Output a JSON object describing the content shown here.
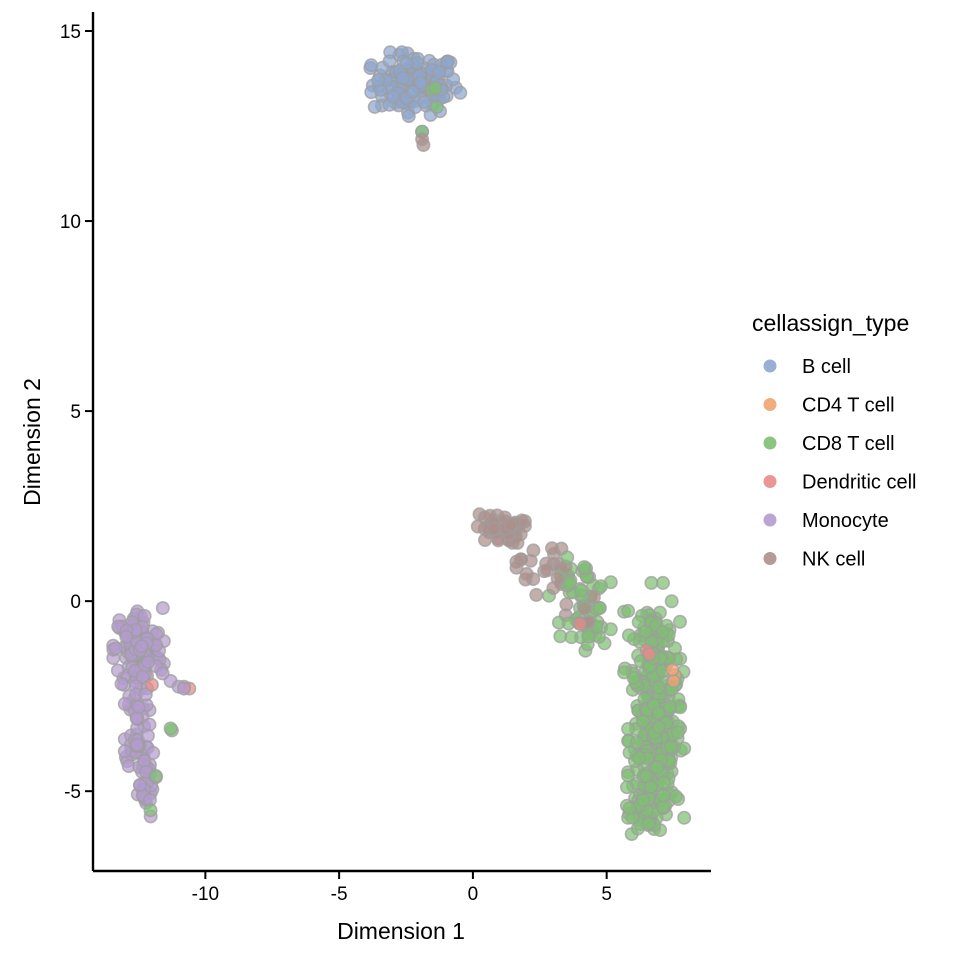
{
  "chart_data": {
    "type": "scatter",
    "title": "",
    "xlabel": "Dimension 1",
    "ylabel": "Dimension 2",
    "xlim": [
      -14.2,
      8.9
    ],
    "ylim": [
      -7.1,
      15.5
    ],
    "xticks": [
      -10,
      -5,
      0,
      5
    ],
    "yticks": [
      -5,
      0,
      5,
      10,
      15
    ],
    "grid": false,
    "legend": {
      "title": "cellassign_type",
      "placement": "right"
    },
    "series": [
      {
        "name": "B cell",
        "color": "#8ea6cf",
        "clusters": [
          {
            "cx": -2.15,
            "cy": 13.6,
            "sx": 0.8,
            "sy": 0.4,
            "n": 130
          }
        ],
        "points": [
          [
            -1.9,
            12.35
          ]
        ]
      },
      {
        "name": "CD4 T cell",
        "color": "#f0a470",
        "clusters": [],
        "points": [
          [
            7.55,
            -1.95
          ],
          [
            7.5,
            -2.1
          ],
          [
            7.45,
            -1.8
          ]
        ]
      },
      {
        "name": "CD8 T cell",
        "color": "#7fbf73",
        "clusters": [
          {
            "cx": 6.7,
            "cy": -1.2,
            "sx": 0.5,
            "sy": 0.8,
            "n": 90
          },
          {
            "cx": 6.85,
            "cy": -3.6,
            "sx": 0.5,
            "sy": 1.0,
            "n": 230
          },
          {
            "cx": 6.6,
            "cy": -5.3,
            "sx": 0.4,
            "sy": 0.4,
            "n": 50
          },
          {
            "cx": 4.0,
            "cy": 0.1,
            "sx": 0.55,
            "sy": 0.5,
            "n": 45
          },
          {
            "cx": 4.5,
            "cy": -0.8,
            "sx": 0.25,
            "sy": 0.3,
            "n": 12
          }
        ],
        "points": [
          [
            -1.55,
            13.45
          ],
          [
            -1.35,
            13.0
          ],
          [
            -1.4,
            13.5
          ],
          [
            -11.25,
            -3.4
          ],
          [
            -11.3,
            -3.35
          ],
          [
            -1.9,
            12.35
          ],
          [
            -12.05,
            -5.5
          ],
          [
            -11.85,
            -4.6
          ]
        ]
      },
      {
        "name": "Dendritic cell",
        "color": "#e88b87",
        "clusters": [],
        "points": [
          [
            -10.6,
            -2.3
          ],
          [
            -10.8,
            -2.25
          ],
          [
            -12.0,
            -2.2
          ],
          [
            6.5,
            -1.3
          ],
          [
            6.6,
            -1.4
          ],
          [
            4.0,
            -0.6
          ]
        ]
      },
      {
        "name": "Monocyte",
        "color": "#b49bcf",
        "clusters": [
          {
            "cx": -12.5,
            "cy": -1.3,
            "sx": 0.45,
            "sy": 0.55,
            "n": 130
          },
          {
            "cx": -12.55,
            "cy": -3.3,
            "sx": 0.22,
            "sy": 0.55,
            "n": 45
          },
          {
            "cx": -12.3,
            "cy": -4.8,
            "sx": 0.22,
            "sy": 0.45,
            "n": 30
          }
        ],
        "points": [
          [
            -11.3,
            -2.1
          ],
          [
            -11.0,
            -2.25
          ],
          [
            -10.8,
            -2.3
          ],
          [
            -11.6,
            -1.9
          ]
        ]
      },
      {
        "name": "NK cell",
        "color": "#ad8f8b",
        "clusters": [
          {
            "cx": 1.0,
            "cy": 1.9,
            "sx": 0.45,
            "sy": 0.2,
            "n": 45
          },
          {
            "cx": 2.6,
            "cy": 0.9,
            "sx": 0.5,
            "sy": 0.35,
            "n": 25
          },
          {
            "cx": 4.1,
            "cy": -0.5,
            "sx": 0.3,
            "sy": 0.3,
            "n": 10
          }
        ],
        "points": [
          [
            -1.85,
            12.0
          ],
          [
            -1.9,
            12.15
          ]
        ]
      }
    ]
  }
}
